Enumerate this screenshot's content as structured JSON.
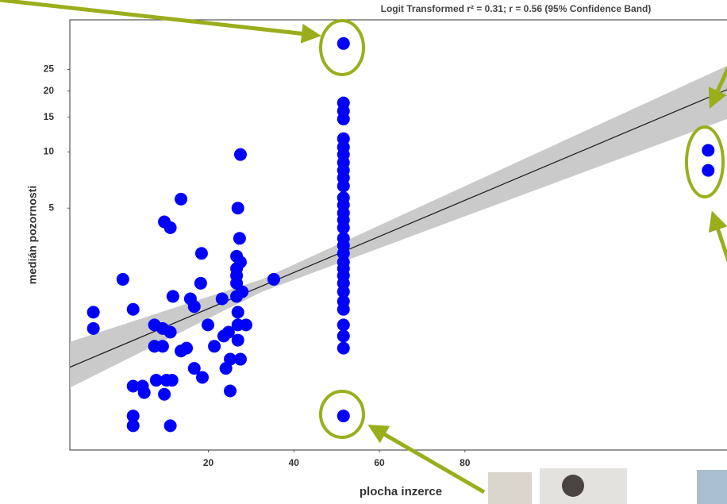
{
  "chart_data": {
    "type": "scatter",
    "title": "Logit Transformed r² = 0.31; r = 0.56 (95% Confidence Band)",
    "x_label": "plocha inzerce",
    "y_label": "medián pozornosti",
    "color": "#0000ff",
    "y_scale": "logit",
    "xlim": [
      -12.4,
      141.3
    ],
    "ylim": [
      0.21,
      39.2
    ],
    "xticks": [
      20,
      40,
      60,
      80
    ],
    "yticks": [
      5,
      10,
      15,
      20,
      25
    ],
    "x": [
      -6.9,
      -6.9,
      0,
      2.4,
      2.4,
      2.4,
      2.4,
      4.6,
      5.0,
      7.4,
      7.4,
      7.8,
      9.3,
      9.3,
      9.7,
      10.2,
      11.1,
      11.5,
      11.1,
      13.6,
      9.7,
      11.1,
      11.7,
      13.6,
      14.9,
      16.7,
      16.7,
      18.4,
      18.2,
      18.6,
      19.9,
      21.4,
      23.2,
      23.6,
      24.7,
      25.1,
      26.6,
      26.6,
      26.6,
      26.6,
      26.6,
      26.9,
      26.9,
      26.9,
      27.5,
      26.9,
      27.3,
      27.5,
      27.9,
      28.8,
      35.3,
      25.1,
      27.5,
      24.1,
      15.8,
      51.6,
      51.6,
      51.6,
      51.6,
      51.6,
      51.6,
      51.6,
      51.6,
      51.6,
      51.6,
      51.6,
      51.6,
      51.6,
      51.6,
      51.6,
      51.6,
      51.6,
      51.6,
      51.6,
      51.6,
      51.6,
      51.6,
      51.6,
      51.6,
      51.6,
      51.6,
      51.6,
      51.6,
      51.6,
      51.6,
      136.9,
      136.9
    ],
    "values": [
      1.3,
      1.05,
      2.0,
      1.35,
      0.49,
      0.33,
      0.29,
      0.49,
      0.45,
      1.1,
      0.83,
      0.53,
      1.05,
      0.83,
      0.44,
      0.53,
      1.0,
      0.53,
      0.29,
      5.6,
      4.2,
      3.9,
      1.6,
      0.78,
      0.81,
      1.4,
      0.62,
      2.8,
      1.9,
      0.55,
      1.1,
      0.83,
      1.55,
      0.95,
      1.0,
      0.46,
      2.7,
      2.3,
      2.1,
      1.9,
      1.6,
      1.3,
      1.1,
      0.9,
      9.7,
      5.0,
      3.4,
      2.5,
      1.7,
      1.1,
      2.0,
      0.7,
      0.7,
      0.62,
      1.55,
      32,
      17.6,
      16.1,
      14.7,
      11.7,
      10.6,
      9.7,
      8.8,
      8.0,
      7.3,
      6.6,
      5.7,
      5.2,
      4.7,
      4.3,
      3.9,
      3.4,
      3.1,
      2.8,
      2.5,
      2.3,
      2.1,
      1.9,
      1.7,
      1.5,
      1.35,
      1.1,
      0.95,
      0.81,
      0.33,
      10.2,
      8.0
    ],
    "fit": {
      "color": "#222222",
      "x": [
        -12.4,
        141.3
      ],
      "values": [
        0.63,
        20.3
      ]
    },
    "band": {
      "color": "#c4c4c4",
      "x": [
        -12.4,
        32.5,
        141.3
      ],
      "upper": [
        0.88,
        2.0,
        25.9
      ],
      "lower": [
        0.48,
        1.7,
        14.7
      ]
    }
  }
}
